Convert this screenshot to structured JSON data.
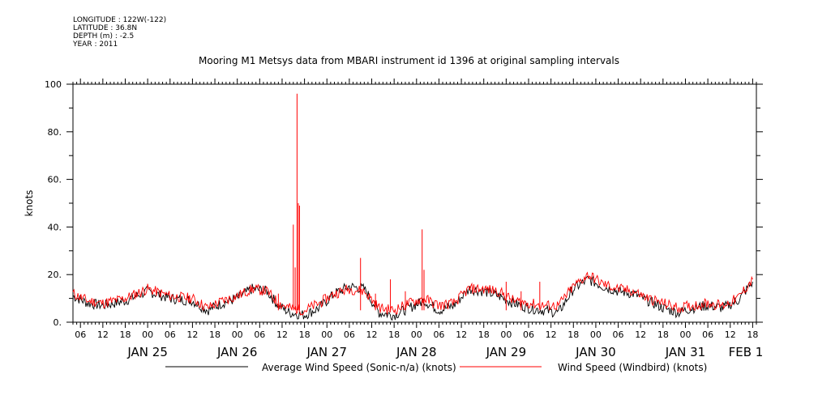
{
  "meta": {
    "longitude": "LONGITUDE : 122W(-122)",
    "latitude": "LATITUDE : 36.8N",
    "depth": "DEPTH (m) : -2.5",
    "year": "YEAR : 2011"
  },
  "chart_data": {
    "type": "line",
    "title": "Mooring M1 Metsys data from MBARI instrument id 1396 at original sampling intervals",
    "ylabel": "knots",
    "ylim": [
      0,
      100
    ],
    "yticks": [
      "0.",
      "20.",
      "40.",
      "60.",
      "80.",
      "100"
    ],
    "x_start": "2011-01-24 16:00",
    "x_end": "2011-02-01 07:00",
    "hour_ticks": [
      "06",
      "12",
      "18",
      "00",
      "06",
      "12",
      "18",
      "00",
      "06",
      "12",
      "18",
      "00",
      "06",
      "12",
      "18",
      "00",
      "06",
      "12",
      "18",
      "00",
      "06",
      "12",
      "18",
      "00",
      "06",
      "12",
      "18",
      "00",
      "06",
      "12",
      "18",
      "00"
    ],
    "day_labels": [
      "JAN 25",
      "JAN 26",
      "JAN 27",
      "JAN 28",
      "JAN 29",
      "JAN 30",
      "JAN 31",
      "FEB  1"
    ],
    "grid": false,
    "legend_position": "bottom",
    "series": [
      {
        "name": "Average Wind Speed (Sonic-n/a) (knots)",
        "color": "#000000",
        "x": [
          "2011-01-24 16:00",
          "2011-01-24 20:00",
          "2011-01-25 00:00",
          "2011-01-25 06:00",
          "2011-01-25 12:00",
          "2011-01-25 18:00",
          "2011-01-26 00:00",
          "2011-01-26 04:00",
          "2011-01-26 08:00",
          "2011-01-26 12:00",
          "2011-01-26 16:00",
          "2011-01-26 20:00",
          "2011-01-26 23:00",
          "2011-01-27 02:00",
          "2011-01-27 06:00",
          "2011-01-27 10:00",
          "2011-01-27 14:00",
          "2011-01-27 18:00",
          "2011-01-27 22:00",
          "2011-01-28 02:00",
          "2011-01-28 06:00",
          "2011-01-28 10:00",
          "2011-01-28 14:00",
          "2011-01-28 18:00",
          "2011-01-28 22:00",
          "2011-01-29 02:00",
          "2011-01-29 06:00",
          "2011-01-29 10:00",
          "2011-01-29 14:00",
          "2011-01-29 18:00",
          "2011-01-29 22:00",
          "2011-01-30 02:00",
          "2011-01-30 06:00",
          "2011-01-30 10:00",
          "2011-01-30 14:00",
          "2011-01-30 18:00",
          "2011-01-30 22:00",
          "2011-01-31 02:00",
          "2011-01-31 06:00",
          "2011-01-31 10:00",
          "2011-01-31 14:00",
          "2011-01-31 18:00",
          "2011-01-31 22:00",
          "2011-02-01 02:00",
          "2011-02-01 06:00"
        ],
        "y": [
          11,
          8,
          7,
          9,
          13,
          10,
          9,
          5,
          8,
          10,
          14,
          13,
          7,
          4,
          3,
          6,
          12,
          15,
          14,
          4,
          3,
          6,
          9,
          5,
          7,
          14,
          13,
          11,
          8,
          6,
          5,
          4,
          14,
          18,
          15,
          13,
          12,
          9,
          6,
          4,
          6,
          7,
          6,
          9,
          17
        ]
      },
      {
        "name": "Wind Speed (Windbird) (knots)",
        "color": "#ff0000",
        "x": [
          "2011-01-24 16:00",
          "2011-01-24 20:00",
          "2011-01-25 00:00",
          "2011-01-25 06:00",
          "2011-01-25 12:00",
          "2011-01-25 18:00",
          "2011-01-26 00:00",
          "2011-01-26 04:00",
          "2011-01-26 08:00",
          "2011-01-26 12:00",
          "2011-01-26 16:00",
          "2011-01-26 20:00",
          "2011-01-26 23:00",
          "2011-01-27 02:00",
          "2011-01-27 06:00",
          "2011-01-27 10:00",
          "2011-01-27 14:00",
          "2011-01-27 18:00",
          "2011-01-27 22:00",
          "2011-01-28 02:00",
          "2011-01-28 06:00",
          "2011-01-28 10:00",
          "2011-01-28 14:00",
          "2011-01-28 18:00",
          "2011-01-28 22:00",
          "2011-01-29 02:00",
          "2011-01-29 06:00",
          "2011-01-29 10:00",
          "2011-01-29 14:00",
          "2011-01-29 18:00",
          "2011-01-29 22:00",
          "2011-01-30 02:00",
          "2011-01-30 06:00",
          "2011-01-30 10:00",
          "2011-01-30 14:00",
          "2011-01-30 18:00",
          "2011-01-30 22:00",
          "2011-01-31 02:00",
          "2011-01-31 06:00",
          "2011-01-31 10:00",
          "2011-01-31 14:00",
          "2011-01-31 18:00",
          "2011-01-31 22:00",
          "2011-02-01 02:00",
          "2011-02-01 06:00"
        ],
        "y": [
          12,
          9,
          8,
          10,
          14,
          11,
          10,
          6,
          9,
          11,
          14,
          13,
          8,
          6,
          5,
          8,
          12,
          14,
          13,
          6,
          5,
          8,
          10,
          7,
          8,
          14,
          14,
          13,
          9,
          8,
          7,
          7,
          15,
          20,
          16,
          14,
          13,
          10,
          8,
          6,
          7,
          8,
          7,
          10,
          18
        ]
      }
    ],
    "spikes": [
      {
        "series": 1,
        "x": "2011-01-26 23:00",
        "y": 12
      },
      {
        "series": 1,
        "x": "2011-01-27 03:00",
        "y": 41
      },
      {
        "series": 1,
        "x": "2011-01-27 03:30",
        "y": 23
      },
      {
        "series": 1,
        "x": "2011-01-27 04:00",
        "y": 96
      },
      {
        "series": 1,
        "x": "2011-01-27 04:20",
        "y": 50
      },
      {
        "series": 1,
        "x": "2011-01-27 04:40",
        "y": 49
      },
      {
        "series": 1,
        "x": "2011-01-27 21:00",
        "y": 27
      },
      {
        "series": 1,
        "x": "2011-01-28 01:00",
        "y": 12
      },
      {
        "series": 1,
        "x": "2011-01-28 05:00",
        "y": 18
      },
      {
        "series": 1,
        "x": "2011-01-28 09:00",
        "y": 13
      },
      {
        "series": 1,
        "x": "2011-01-28 13:30",
        "y": 39
      },
      {
        "series": 1,
        "x": "2011-01-28 14:00",
        "y": 22
      },
      {
        "series": 1,
        "x": "2011-01-29 12:00",
        "y": 17
      },
      {
        "series": 1,
        "x": "2011-01-29 21:00",
        "y": 17
      },
      {
        "series": 1,
        "x": "2011-01-29 16:00",
        "y": 13
      }
    ]
  }
}
